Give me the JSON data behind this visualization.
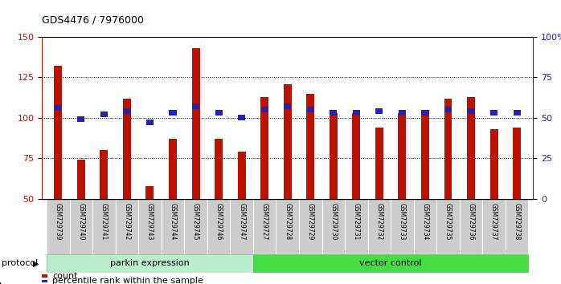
{
  "title": "GDS4476 / 7976000",
  "samples": [
    "GSM729739",
    "GSM729740",
    "GSM729741",
    "GSM729742",
    "GSM729743",
    "GSM729744",
    "GSM729745",
    "GSM729746",
    "GSM729747",
    "GSM729727",
    "GSM729728",
    "GSM729729",
    "GSM729730",
    "GSM729731",
    "GSM729732",
    "GSM729733",
    "GSM729734",
    "GSM729735",
    "GSM729736",
    "GSM729737",
    "GSM729738"
  ],
  "bar_heights": [
    132,
    74,
    80,
    112,
    58,
    87,
    143,
    87,
    79,
    113,
    121,
    115,
    103,
    103,
    94,
    103,
    103,
    112,
    113,
    93,
    94
  ],
  "percentile_ranks": [
    56,
    49,
    52,
    54,
    47,
    53,
    57,
    53,
    50,
    55,
    57,
    55,
    53,
    53,
    54,
    53,
    53,
    55,
    54,
    53,
    53
  ],
  "parkin_count": 9,
  "vector_count": 12,
  "ylim_left": [
    50,
    150
  ],
  "ylim_right": [
    0,
    100
  ],
  "yticks_left": [
    50,
    75,
    100,
    125,
    150
  ],
  "yticks_right": [
    0,
    25,
    50,
    75,
    100
  ],
  "bar_color": "#BB1100",
  "percentile_color": "#2222BB",
  "parkin_color": "#BBEECC",
  "vector_color": "#44DD44",
  "protocol_label": "protocol",
  "parkin_label": "parkin expression",
  "vector_label": "vector control",
  "legend_count": "count",
  "legend_percentile": "percentile rank within the sample",
  "bar_width": 0.35
}
